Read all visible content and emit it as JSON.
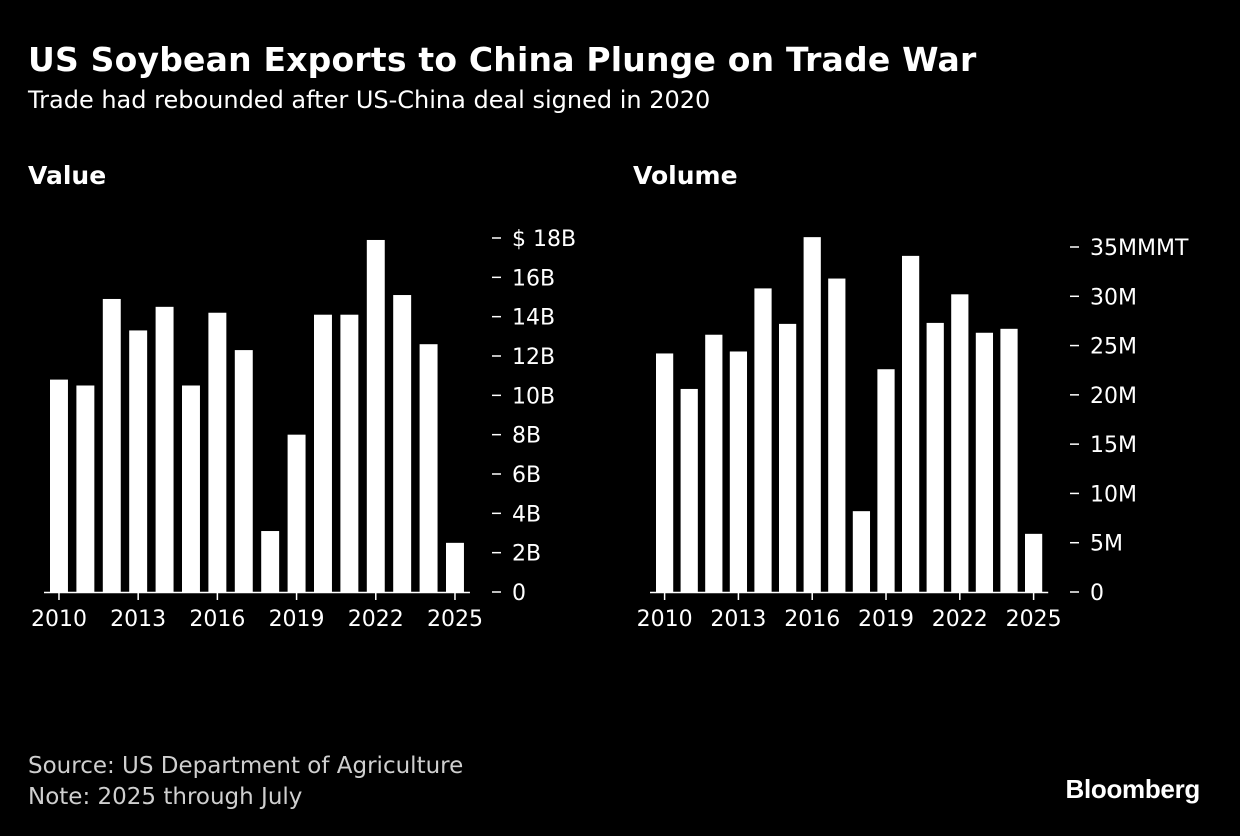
{
  "header": {
    "title": "US Soybean Exports to China Plunge on Trade War",
    "subtitle": "Trade had rebounded after US-China deal signed in 2020"
  },
  "colors": {
    "background": "#000000",
    "bar": "#ffffff",
    "text": "#ffffff",
    "footer_text": "#cfcfcf"
  },
  "chart_data": [
    {
      "type": "bar",
      "title": "Value",
      "categories": [
        2010,
        2011,
        2012,
        2013,
        2014,
        2015,
        2016,
        2017,
        2018,
        2019,
        2020,
        2021,
        2022,
        2023,
        2024,
        2025
      ],
      "values": [
        10.8,
        10.5,
        14.9,
        13.3,
        14.5,
        10.5,
        14.2,
        12.3,
        3.1,
        8.0,
        14.1,
        14.1,
        17.9,
        15.1,
        12.6,
        2.5
      ],
      "ylim": [
        0,
        18
      ],
      "yticks": [
        0,
        2,
        4,
        6,
        8,
        10,
        12,
        14,
        16,
        18
      ],
      "ytick_labels": [
        "0",
        "2B",
        "4B",
        "6B",
        "8B",
        "10B",
        "12B",
        "14B",
        "16B",
        "$ 18B"
      ],
      "xtick_labels": [
        "2010",
        "2013",
        "2016",
        "2019",
        "2022",
        "2025"
      ],
      "axis_side": "right",
      "grid": false
    },
    {
      "type": "bar",
      "title": "Volume",
      "categories": [
        2010,
        2011,
        2012,
        2013,
        2014,
        2015,
        2016,
        2017,
        2018,
        2019,
        2020,
        2021,
        2022,
        2023,
        2024,
        2025
      ],
      "values": [
        24.2,
        20.6,
        26.1,
        24.4,
        30.8,
        27.2,
        36.0,
        31.8,
        8.2,
        22.6,
        34.1,
        27.3,
        30.2,
        26.3,
        26.7,
        5.9
      ],
      "ylim": [
        0,
        35
      ],
      "yticks": [
        0,
        5,
        10,
        15,
        20,
        25,
        30,
        35
      ],
      "ytick_labels": [
        "0",
        "5M",
        "10M",
        "15M",
        "20M",
        "25M",
        "30M",
        "35MMMT"
      ],
      "xtick_labels": [
        "2010",
        "2013",
        "2016",
        "2019",
        "2022",
        "2025"
      ],
      "axis_side": "right",
      "grid": false
    }
  ],
  "footer": {
    "source": "Source: US Department of Agriculture",
    "note": "Note: 2025 through July"
  },
  "brand": "Bloomberg"
}
